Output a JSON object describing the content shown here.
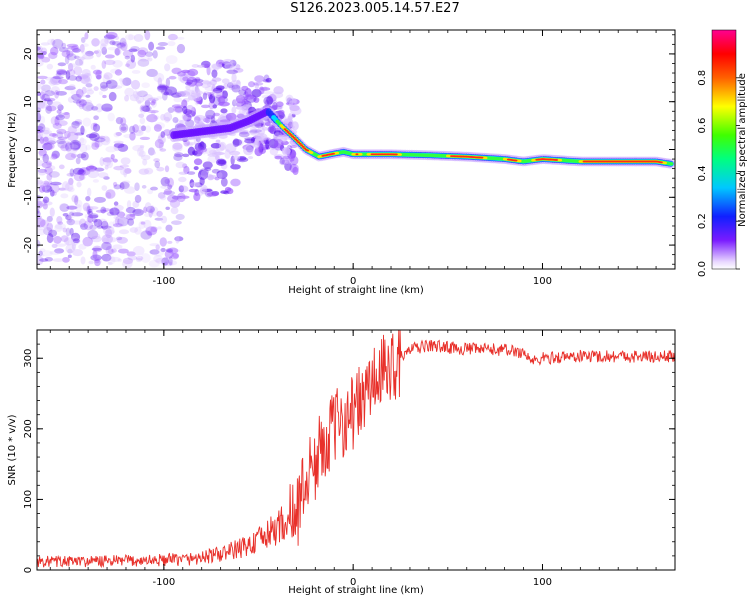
{
  "title": "S126.2023.005.14.57.E27",
  "colors": {
    "snr_line": "#e8302a",
    "spectrum_weak": "#9a5cff",
    "spectrum_strong": "#ff1a1a"
  },
  "chart_data": [
    {
      "type": "heatmap",
      "xlabel": "Height of straight line (km)",
      "ylabel": "Frequency (Hz)",
      "xlim": [
        -167,
        170
      ],
      "ylim": [
        -25,
        25
      ],
      "xticks": [
        -100,
        0,
        100
      ],
      "yticks": [
        -20,
        -10,
        0,
        10,
        20
      ],
      "grid": false,
      "colorbar": {
        "label": "Normalized spectral amplitude",
        "range": [
          0,
          1
        ],
        "ticks": [
          "0.0",
          "0.2",
          "0.4",
          "0.6",
          "0.8"
        ],
        "colormap": "gist_rainbow_r (white at 0, violet→blue→cyan→green→yellow→red→magenta at 1)"
      },
      "peak_track": {
        "x": [
          -95,
          -85,
          -75,
          -65,
          -55,
          -45,
          -38,
          -30,
          -25,
          -18,
          -12,
          -5,
          0,
          10,
          20,
          40,
          60,
          80,
          90,
          100,
          120,
          140,
          160,
          168
        ],
        "y": [
          3,
          3.5,
          4,
          4.5,
          6,
          8,
          5,
          2,
          0,
          -1.5,
          -1,
          -0.5,
          -1,
          -1,
          -1,
          -1.2,
          -1.5,
          -2,
          -2.5,
          -2,
          -2.5,
          -2.5,
          -2.5,
          -3
        ]
      },
      "diffuse_region_x": [
        -167,
        -30
      ]
    },
    {
      "type": "line",
      "xlabel": "Height of straight line (km)",
      "ylabel": "SNR (10 * v/v)",
      "xlim": [
        -167,
        170
      ],
      "ylim": [
        0,
        340
      ],
      "xticks": [
        -100,
        0,
        100
      ],
      "yticks": [
        0,
        100,
        200,
        300
      ],
      "grid": false,
      "series": [
        {
          "x": [
            -167,
            -140,
            -120,
            -100,
            -85,
            -70,
            -55,
            -45,
            -38,
            -33,
            -30,
            -25,
            -20,
            -15,
            -10,
            -5,
            0,
            5,
            10,
            15,
            20,
            25,
            30,
            40,
            60,
            80,
            90,
            95,
            100,
            120,
            140,
            160,
            170
          ],
          "y": [
            12,
            12,
            13,
            14,
            16,
            22,
            35,
            50,
            65,
            70,
            80,
            130,
            150,
            185,
            200,
            215,
            225,
            240,
            265,
            275,
            290,
            300,
            312,
            318,
            313,
            312,
            308,
            295,
            300,
            303,
            303,
            302,
            303
          ]
        }
      ]
    }
  ]
}
